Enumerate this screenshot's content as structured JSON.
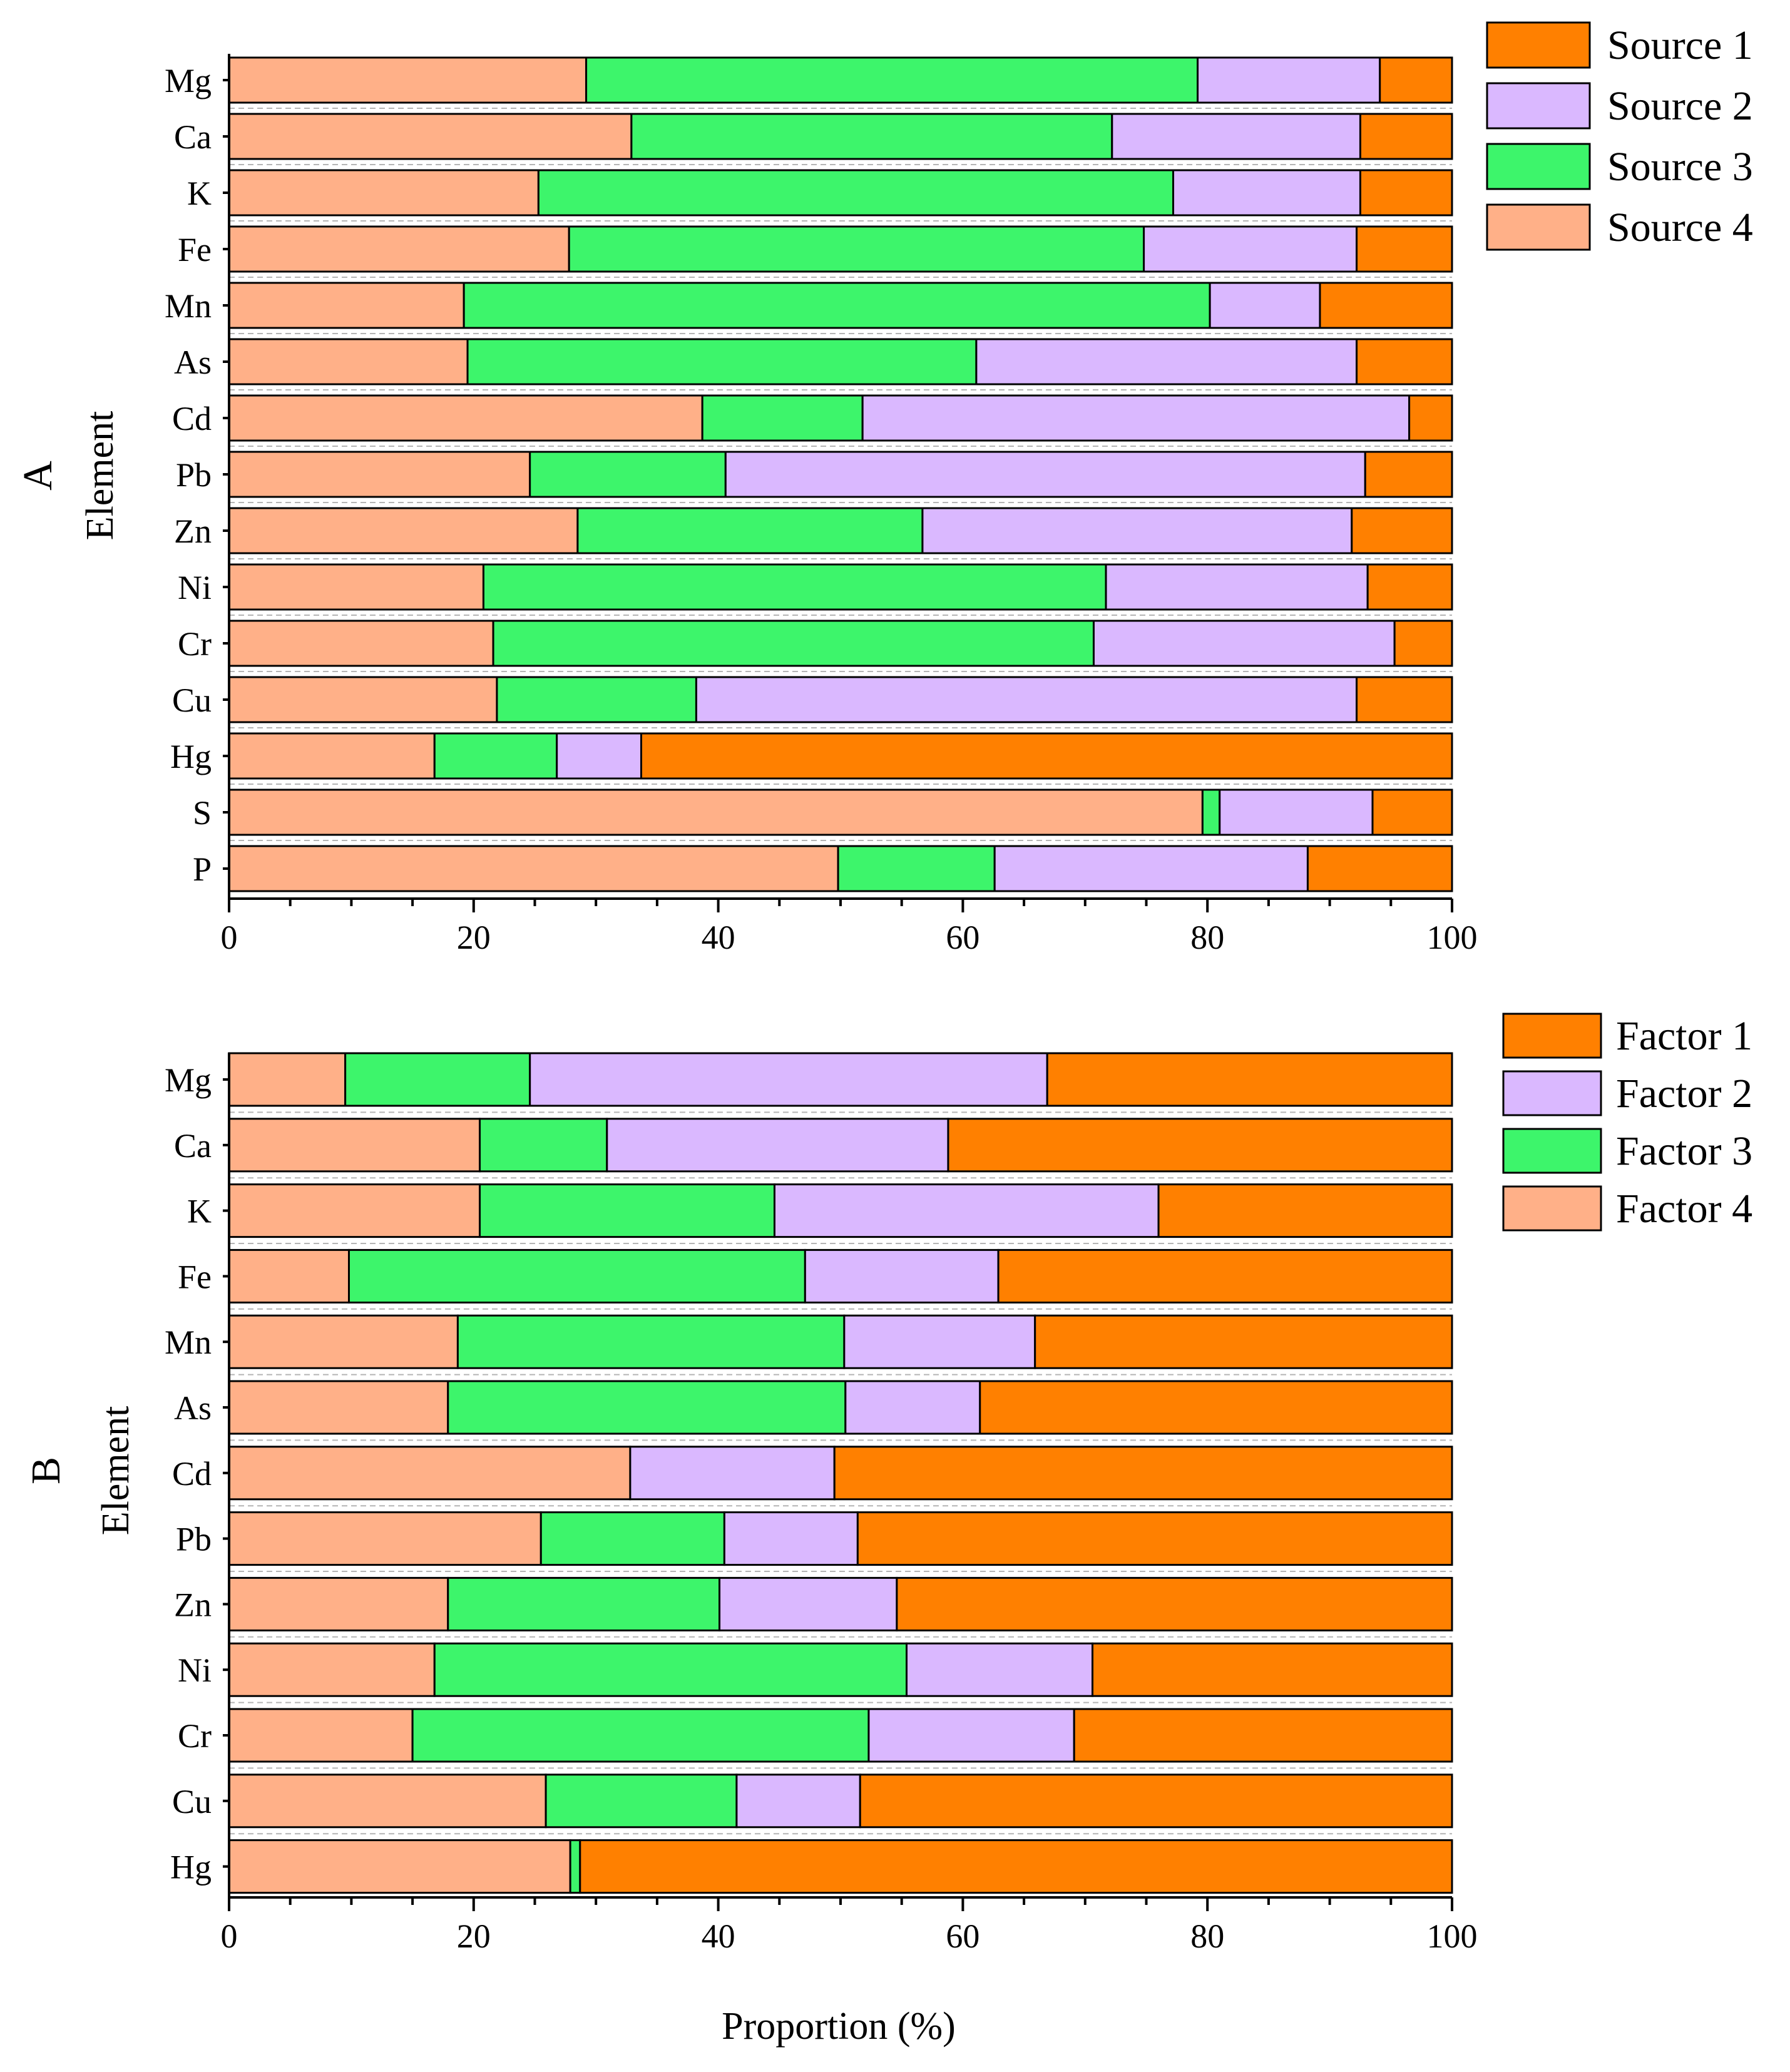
{
  "colors": {
    "orange": "#FF8000",
    "purple": "#DAB8FF",
    "green": "#3DF56B",
    "salmon": "#FFB088"
  },
  "chart_data": [
    {
      "type": "bar",
      "orientation": "horizontal",
      "stacked": true,
      "panel_label": "A",
      "ylabel": "Element",
      "xlabel": "",
      "xlim": [
        0,
        100
      ],
      "x_ticks": [
        "0",
        "20",
        "40",
        "60",
        "80",
        "100"
      ],
      "categories": [
        "Mg",
        "Ca",
        "K",
        "Fe",
        "Mn",
        "As",
        "Cd",
        "Pb",
        "Zn",
        "Ni",
        "Cr",
        "Cu",
        "Hg",
        "S",
        "P"
      ],
      "legend_position": "top-right",
      "legend": [
        "Source 1",
        "Source 2",
        "Source 3",
        "Source 4"
      ],
      "series": [
        {
          "name": "Source 4",
          "color": "salmon",
          "values": [
            29.2,
            32.9,
            25.3,
            27.8,
            19.2,
            19.5,
            38.7,
            24.6,
            28.5,
            20.8,
            21.6,
            21.9,
            16.8,
            79.6,
            49.8
          ]
        },
        {
          "name": "Source 3",
          "color": "green",
          "values": [
            50.0,
            39.3,
            51.9,
            47.0,
            61.0,
            41.6,
            13.1,
            16.0,
            28.2,
            50.9,
            49.1,
            16.3,
            10.0,
            1.4,
            12.8
          ]
        },
        {
          "name": "Source 2",
          "color": "purple",
          "values": [
            14.9,
            20.3,
            15.3,
            17.4,
            9.0,
            31.1,
            44.7,
            52.3,
            35.1,
            21.4,
            24.6,
            54.0,
            6.9,
            12.5,
            25.6
          ]
        },
        {
          "name": "Source 1",
          "color": "orange",
          "values": [
            5.9,
            7.5,
            7.5,
            7.8,
            10.8,
            7.8,
            3.5,
            7.1,
            8.2,
            6.9,
            4.7,
            7.8,
            66.3,
            6.5,
            11.8
          ]
        }
      ]
    },
    {
      "type": "bar",
      "orientation": "horizontal",
      "stacked": true,
      "panel_label": "B",
      "ylabel": "Element",
      "xlabel": "Proportion (%)",
      "xlim": [
        0,
        100
      ],
      "x_ticks": [
        "0",
        "20",
        "40",
        "60",
        "80",
        "100"
      ],
      "categories": [
        "Mg",
        "Ca",
        "K",
        "Fe",
        "Mn",
        "As",
        "Cd",
        "Pb",
        "Zn",
        "Ni",
        "Cr",
        "Cu",
        "Hg"
      ],
      "legend_position": "top-right",
      "legend": [
        "Factor 1",
        "Factor 2",
        "Factor 3",
        "Factor 4"
      ],
      "series": [
        {
          "name": "Factor 4",
          "color": "salmon",
          "values": [
            9.5,
            20.5,
            20.5,
            9.8,
            18.7,
            17.9,
            32.8,
            25.5,
            17.9,
            16.8,
            15.0,
            25.9,
            27.9
          ]
        },
        {
          "name": "Factor 3",
          "color": "green",
          "values": [
            15.1,
            10.4,
            24.1,
            37.3,
            31.6,
            32.5,
            0.0,
            15.0,
            22.2,
            38.6,
            37.3,
            15.6,
            0.8
          ]
        },
        {
          "name": "Factor 2",
          "color": "purple",
          "values": [
            42.3,
            27.9,
            31.4,
            15.8,
            15.6,
            11.0,
            16.7,
            10.9,
            14.5,
            15.2,
            16.8,
            10.1,
            0.0
          ]
        },
        {
          "name": "Factor 1",
          "color": "orange",
          "values": [
            33.1,
            41.2,
            24.0,
            37.1,
            34.1,
            38.6,
            50.5,
            48.6,
            45.4,
            29.4,
            30.9,
            48.4,
            71.3
          ]
        }
      ]
    }
  ]
}
